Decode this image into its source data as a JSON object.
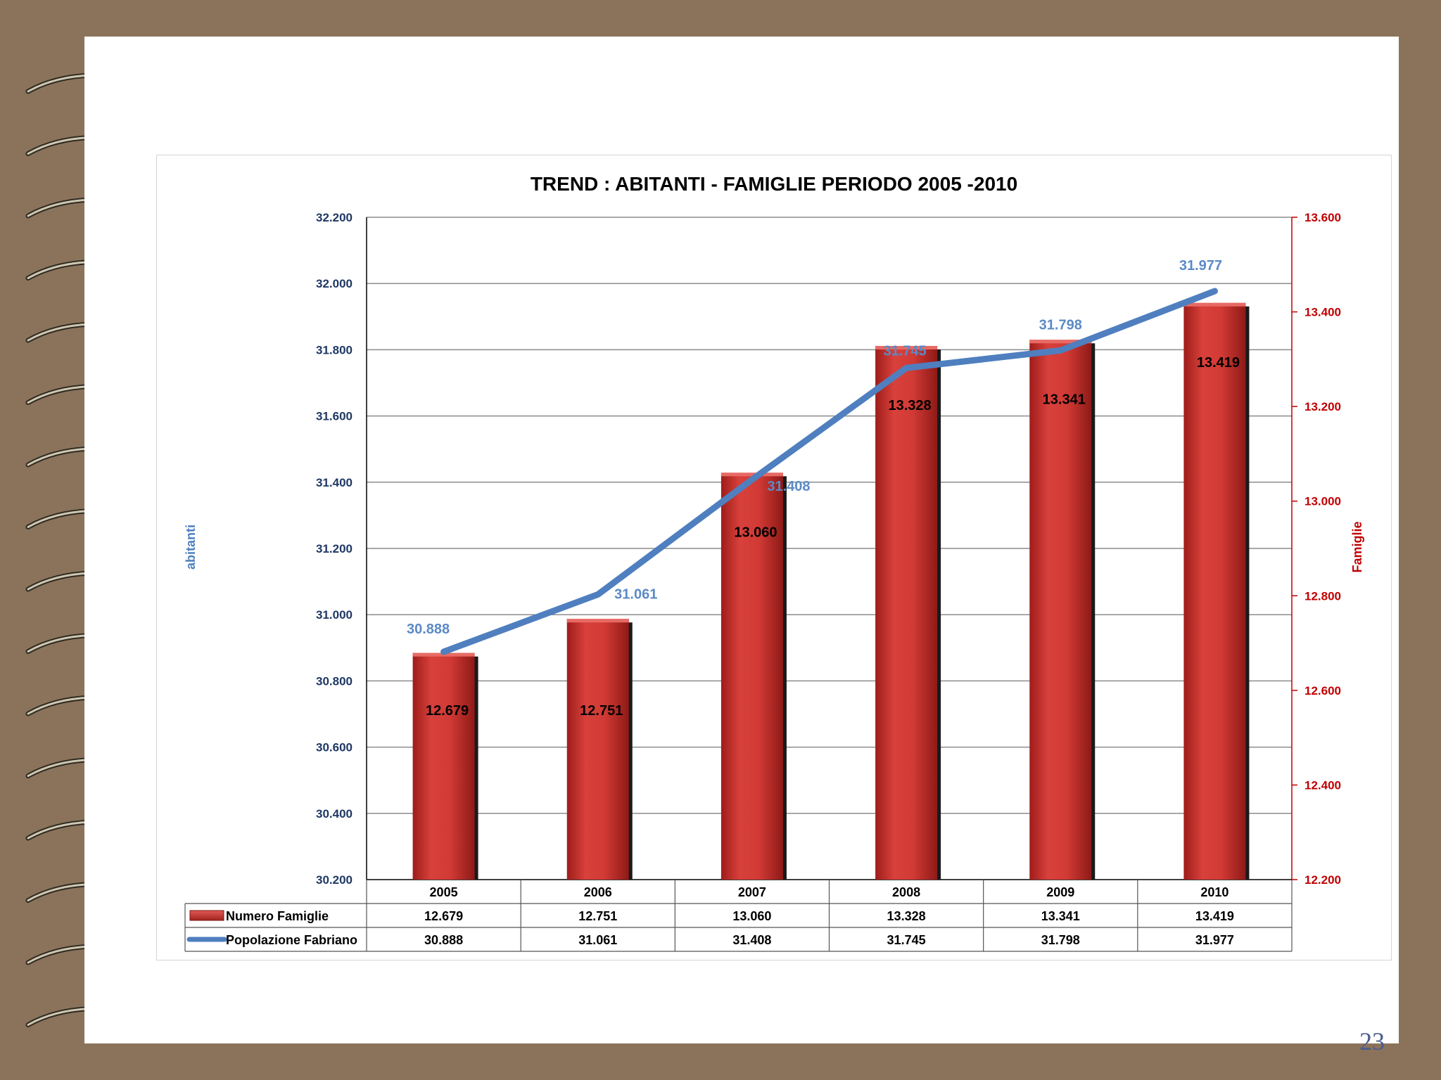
{
  "slide": {
    "page_number": "23"
  },
  "colors": {
    "background": "#8b735b",
    "bar": "#c9302c",
    "line": "#4f7fbf",
    "left_axis_text": "#1f3864",
    "right_axis": "#c00000",
    "grid": "#7f7f7f"
  },
  "chart_data": {
    "type": "bar",
    "title": "TREND : ABITANTI - FAMIGLIE  PERIODO  2005 -2010",
    "categories": [
      "2005",
      "2006",
      "2007",
      "2008",
      "2009",
      "2010"
    ],
    "y_label_left": "abitanti",
    "y_label_right": "Famiglie",
    "ylim_left": [
      30200,
      32200
    ],
    "ylim_right": [
      12200,
      13600
    ],
    "yticks_left": [
      "30.200",
      "30.400",
      "30.600",
      "30.800",
      "31.000",
      "31.200",
      "31.400",
      "31.600",
      "31.800",
      "32.000",
      "32.200"
    ],
    "yticks_right": [
      "12.200",
      "12.400",
      "12.600",
      "12.800",
      "13.000",
      "13.200",
      "13.400",
      "13.600"
    ],
    "grid": true,
    "legend": "data-table",
    "series": [
      {
        "name": "Numero Famiglie",
        "type": "bar",
        "axis": "right",
        "color": "#c9302c",
        "values": [
          12679,
          12751,
          13060,
          13328,
          13341,
          13419
        ],
        "labels": [
          "12.679",
          "12.751",
          "13.060",
          "13.328",
          "13.341",
          "13.419"
        ]
      },
      {
        "name": "Popolazione Fabriano",
        "type": "line",
        "axis": "left",
        "color": "#4f7fbf",
        "values": [
          30888,
          31061,
          31408,
          31745,
          31798,
          31977
        ],
        "labels": [
          "30.888",
          "31.061",
          "31.408",
          "31.745",
          "31.798",
          "31.977"
        ]
      }
    ]
  }
}
